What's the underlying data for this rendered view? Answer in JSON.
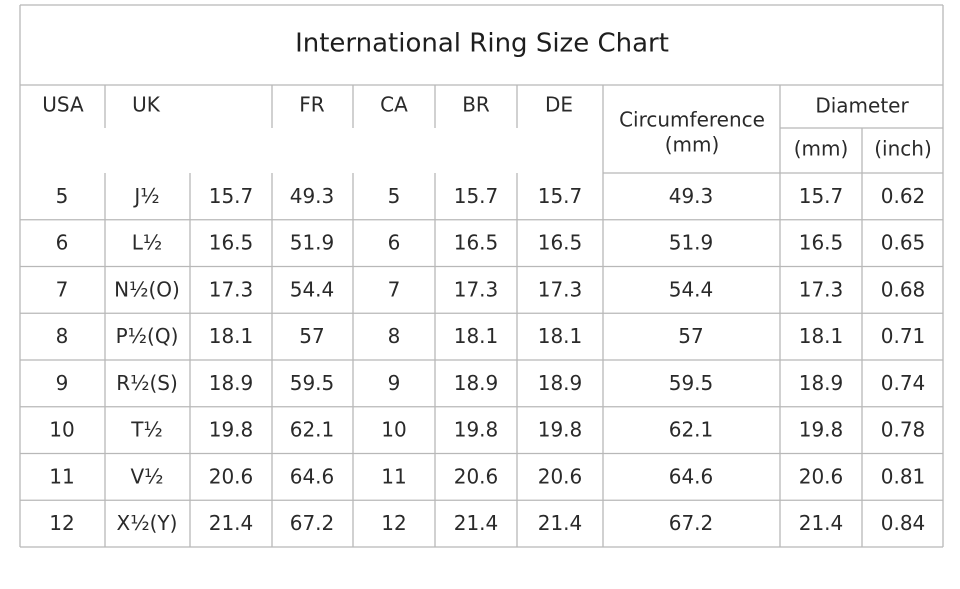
{
  "title": "International Ring Size Chart",
  "header": {
    "usa": "USA",
    "uk": "UK",
    "fr": "FR",
    "ca": "CA",
    "br": "BR",
    "de": "DE",
    "circumference": [
      "Circumference",
      "(mm)"
    ],
    "diameter": "Diameter",
    "diameter_units": [
      "(mm)",
      "(inch)"
    ]
  },
  "table": {
    "rows": [
      [
        5,
        "J½",
        15.7,
        49.3,
        5,
        15.7,
        15.7,
        49.3,
        15.7,
        0.62
      ],
      [
        6,
        "L½",
        16.5,
        51.9,
        6,
        16.5,
        16.5,
        51.9,
        16.5,
        0.65
      ],
      [
        7,
        "N½(O)",
        17.3,
        54.4,
        7,
        17.3,
        17.3,
        54.4,
        17.3,
        0.68
      ],
      [
        8,
        "P½(Q)",
        18.1,
        57,
        8,
        18.1,
        18.1,
        57,
        18.1,
        0.71
      ],
      [
        9,
        "R½(S)",
        18.9,
        59.5,
        9,
        18.9,
        18.9,
        59.5,
        18.9,
        0.74
      ],
      [
        10,
        "T½",
        19.8,
        62.1,
        10,
        19.8,
        19.8,
        62.1,
        19.8,
        0.78
      ],
      [
        11,
        "V½",
        20.6,
        64.6,
        11,
        20.6,
        20.6,
        64.6,
        20.6,
        0.81
      ],
      [
        12,
        "X½(Y)",
        21.4,
        67.2,
        12,
        21.4,
        21.4,
        67.2,
        21.4,
        0.84
      ]
    ]
  }
}
